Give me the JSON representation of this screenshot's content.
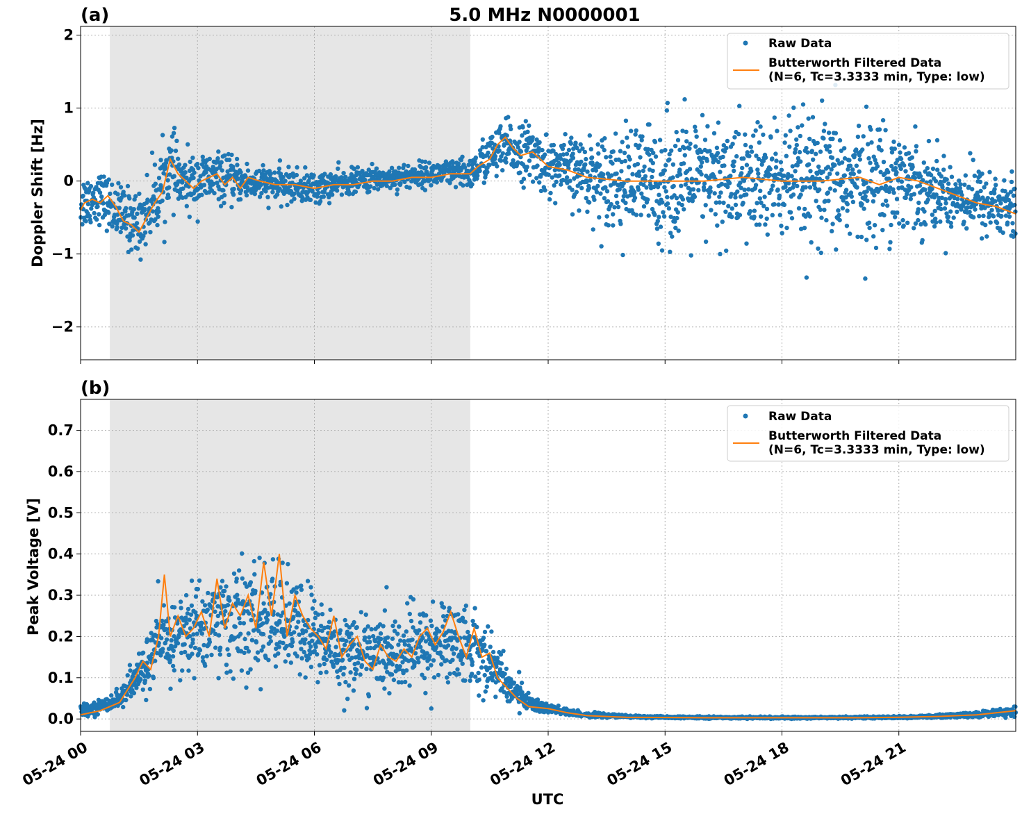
{
  "title": "5.0 MHz N0000001",
  "xlabel": "UTC",
  "colors": {
    "raw": "#1f77b4",
    "filtered": "#ff7f0e",
    "shade": "#e6e6e6",
    "grid": "#b0b0b0"
  },
  "legend": {
    "raw": "Raw Data",
    "filtered_line1": "Butterworth Filtered Data",
    "filtered_line2": "(N=6, Tc=3.3333 min, Type: low)"
  },
  "chart_data": [
    {
      "type": "scatter",
      "panel_label": "(a)",
      "ylabel": "Doppler Shift [Hz]",
      "ylim": [
        -2.45,
        2.12
      ],
      "yticks": [
        2,
        1,
        0,
        -1,
        -2
      ],
      "ytick_labels": [
        "2",
        "1",
        "0",
        "−1",
        "−2"
      ],
      "xlim_hours": [
        0,
        24
      ],
      "xticks_hours": [
        0,
        3,
        6,
        9,
        12,
        15,
        18,
        21
      ],
      "xtick_labels": [
        "05-24 00",
        "05-24 03",
        "05-24 06",
        "05-24 09",
        "05-24 12",
        "05-24 15",
        "05-24 18",
        "05-24 21"
      ],
      "shaded_span_hours": [
        0.75,
        10.0
      ],
      "grid": true,
      "legend_position": "top-right",
      "series": [
        {
          "name": "Raw Data",
          "style": "markers",
          "x_hours": [
            0.0,
            0.5,
            1.0,
            1.5,
            2.0,
            2.3,
            2.6,
            3.0,
            3.5,
            4.0,
            5.0,
            6.0,
            7.0,
            8.0,
            9.0,
            10.0,
            10.5,
            11.0,
            11.5,
            12.0,
            13.0,
            14.0,
            15.0,
            16.0,
            17.0,
            18.0,
            19.0,
            20.0,
            21.0,
            22.0,
            23.0,
            24.0
          ],
          "y_center": [
            -0.3,
            -0.2,
            -0.45,
            -0.6,
            -0.15,
            0.2,
            -0.05,
            0.0,
            0.05,
            0.0,
            -0.05,
            -0.1,
            0.0,
            0.05,
            0.1,
            0.1,
            0.35,
            0.45,
            0.4,
            0.2,
            0.1,
            0.0,
            0.0,
            0.0,
            0.0,
            0.0,
            -0.05,
            0.0,
            0.05,
            -0.15,
            -0.25,
            -0.4
          ],
          "y_spread": [
            0.35,
            0.3,
            0.35,
            0.4,
            0.45,
            0.45,
            0.35,
            0.35,
            0.3,
            0.25,
            0.2,
            0.2,
            0.15,
            0.15,
            0.15,
            0.2,
            0.3,
            0.35,
            0.35,
            0.35,
            0.45,
            0.65,
            0.75,
            0.75,
            0.75,
            0.75,
            0.8,
            0.75,
            0.65,
            0.45,
            0.4,
            0.45
          ]
        },
        {
          "name": "Butterworth Filtered Data\n(N=6, Tc=3.3333 min, Type: low)",
          "style": "line",
          "x_hours": [
            0.0,
            0.1,
            0.3,
            0.5,
            0.7,
            0.9,
            1.1,
            1.3,
            1.5,
            1.7,
            1.9,
            2.1,
            2.3,
            2.5,
            2.7,
            2.9,
            3.1,
            3.3,
            3.5,
            3.7,
            3.9,
            4.1,
            4.3,
            4.6,
            5.0,
            5.5,
            6.0,
            6.5,
            7.0,
            7.5,
            8.0,
            8.5,
            9.0,
            9.5,
            10.0,
            10.2,
            10.5,
            10.7,
            10.9,
            11.1,
            11.3,
            11.6,
            12.0,
            12.5,
            13.0,
            14.0,
            15.0,
            16.0,
            17.0,
            18.0,
            19.0,
            20.0,
            20.5,
            21.0,
            21.5,
            22.0,
            22.5,
            23.0,
            23.5,
            24.0
          ],
          "y": [
            -0.4,
            -0.3,
            -0.25,
            -0.3,
            -0.2,
            -0.35,
            -0.55,
            -0.6,
            -0.7,
            -0.5,
            -0.3,
            -0.15,
            0.3,
            0.1,
            0.0,
            -0.1,
            0.0,
            0.05,
            0.1,
            -0.05,
            0.05,
            -0.1,
            0.05,
            0.0,
            -0.05,
            -0.05,
            -0.1,
            -0.05,
            -0.05,
            0.0,
            0.0,
            0.05,
            0.05,
            0.1,
            0.1,
            0.2,
            0.3,
            0.5,
            0.6,
            0.45,
            0.35,
            0.4,
            0.2,
            0.15,
            0.05,
            0.0,
            0.0,
            0.0,
            0.05,
            0.0,
            0.0,
            0.05,
            -0.05,
            0.05,
            0.0,
            -0.1,
            -0.2,
            -0.3,
            -0.35,
            -0.45
          ]
        }
      ]
    },
    {
      "type": "scatter",
      "panel_label": "(b)",
      "ylabel": "Peak Voltage [V]",
      "ylim": [
        -0.03,
        0.775
      ],
      "yticks": [
        0.0,
        0.1,
        0.2,
        0.3,
        0.4,
        0.5,
        0.6,
        0.7
      ],
      "ytick_labels": [
        "0.0",
        "0.1",
        "0.2",
        "0.3",
        "0.4",
        "0.5",
        "0.6",
        "0.7"
      ],
      "xlim_hours": [
        0,
        24
      ],
      "xticks_hours": [
        0,
        3,
        6,
        9,
        12,
        15,
        18,
        21
      ],
      "xtick_labels": [
        "05-24 00",
        "05-24 03",
        "05-24 06",
        "05-24 09",
        "05-24 12",
        "05-24 15",
        "05-24 18",
        "05-24 21"
      ],
      "shaded_span_hours": [
        0.75,
        10.0
      ],
      "grid": true,
      "legend_position": "top-right",
      "series": [
        {
          "name": "Raw Data",
          "style": "markers",
          "x_hours": [
            0.0,
            0.5,
            1.0,
            1.3,
            1.6,
            2.0,
            2.5,
            3.0,
            3.5,
            4.0,
            4.5,
            5.0,
            5.5,
            6.0,
            6.5,
            7.0,
            7.5,
            8.0,
            8.5,
            9.0,
            9.5,
            10.0,
            10.5,
            11.0,
            11.5,
            12.0,
            12.5,
            13.0,
            14.0,
            15.0,
            18.0,
            21.0,
            22.0,
            23.0,
            24.0
          ],
          "y_center": [
            0.02,
            0.03,
            0.05,
            0.08,
            0.12,
            0.18,
            0.2,
            0.22,
            0.24,
            0.24,
            0.23,
            0.25,
            0.22,
            0.2,
            0.17,
            0.16,
            0.16,
            0.15,
            0.17,
            0.18,
            0.19,
            0.18,
            0.14,
            0.08,
            0.04,
            0.025,
            0.015,
            0.01,
            0.006,
            0.004,
            0.003,
            0.004,
            0.006,
            0.01,
            0.02
          ],
          "y_spread": [
            0.01,
            0.015,
            0.02,
            0.04,
            0.05,
            0.08,
            0.09,
            0.1,
            0.11,
            0.12,
            0.12,
            0.12,
            0.11,
            0.1,
            0.09,
            0.08,
            0.08,
            0.08,
            0.09,
            0.09,
            0.09,
            0.09,
            0.07,
            0.04,
            0.02,
            0.012,
            0.008,
            0.005,
            0.003,
            0.002,
            0.002,
            0.002,
            0.004,
            0.006,
            0.01
          ]
        },
        {
          "name": "Butterworth Filtered Data\n(N=6, Tc=3.3333 min, Type: low)",
          "style": "line",
          "x_hours": [
            0.0,
            0.5,
            1.0,
            1.2,
            1.4,
            1.6,
            1.8,
            2.0,
            2.15,
            2.3,
            2.5,
            2.7,
            2.9,
            3.1,
            3.3,
            3.5,
            3.7,
            3.9,
            4.1,
            4.3,
            4.5,
            4.7,
            4.9,
            5.1,
            5.3,
            5.5,
            5.7,
            5.9,
            6.1,
            6.3,
            6.5,
            6.7,
            6.9,
            7.1,
            7.3,
            7.5,
            7.7,
            7.9,
            8.1,
            8.3,
            8.5,
            8.7,
            8.9,
            9.1,
            9.3,
            9.5,
            9.7,
            9.9,
            10.1,
            10.3,
            10.5,
            10.7,
            10.9,
            11.2,
            11.5,
            12.0,
            12.5,
            13.0,
            14.0,
            16.0,
            18.0,
            20.0,
            21.0,
            22.0,
            23.0,
            24.0
          ],
          "y": [
            0.01,
            0.02,
            0.04,
            0.07,
            0.1,
            0.14,
            0.12,
            0.2,
            0.35,
            0.2,
            0.25,
            0.2,
            0.22,
            0.26,
            0.2,
            0.34,
            0.22,
            0.28,
            0.25,
            0.3,
            0.22,
            0.38,
            0.25,
            0.4,
            0.2,
            0.3,
            0.25,
            0.22,
            0.2,
            0.17,
            0.25,
            0.15,
            0.18,
            0.2,
            0.14,
            0.12,
            0.18,
            0.15,
            0.14,
            0.17,
            0.15,
            0.2,
            0.22,
            0.18,
            0.21,
            0.26,
            0.2,
            0.15,
            0.22,
            0.15,
            0.16,
            0.1,
            0.08,
            0.05,
            0.03,
            0.025,
            0.015,
            0.008,
            0.004,
            0.003,
            0.003,
            0.003,
            0.004,
            0.006,
            0.01,
            0.02
          ]
        }
      ]
    }
  ]
}
